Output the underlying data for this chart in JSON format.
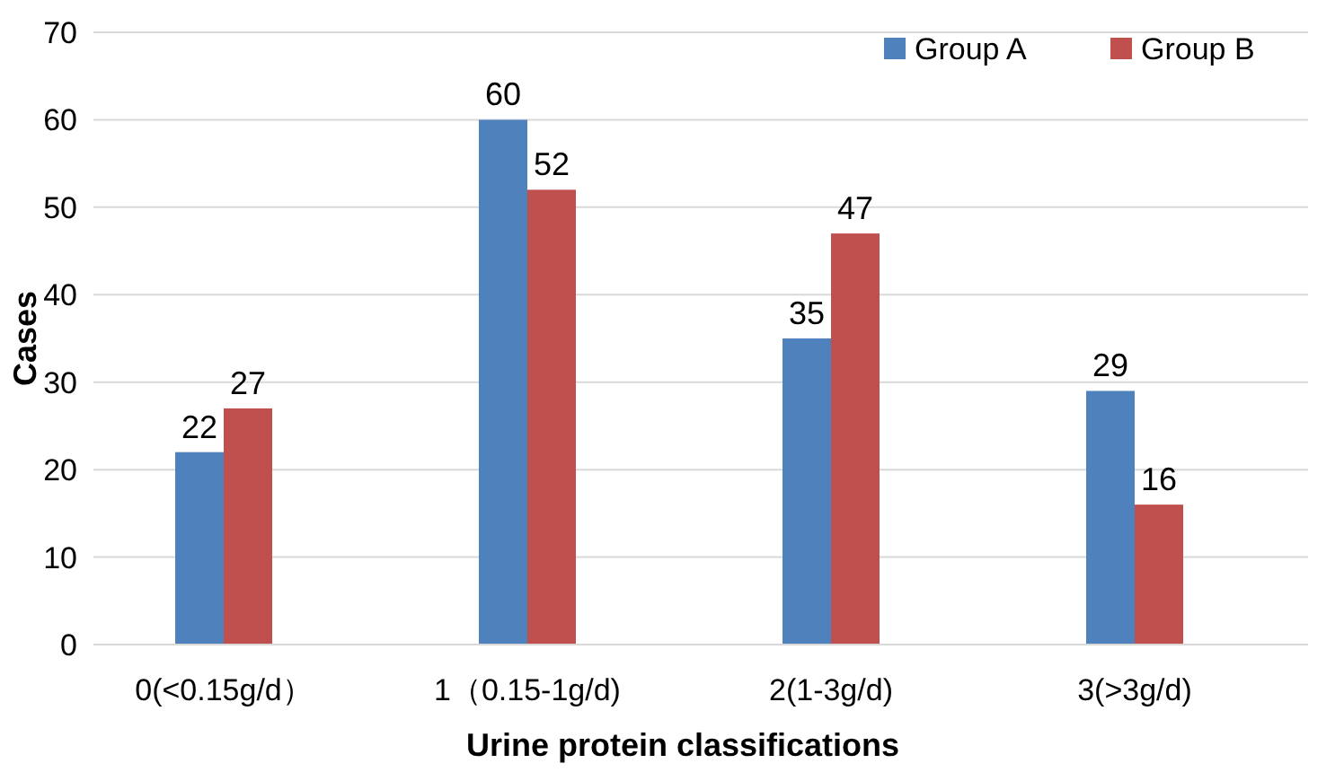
{
  "chart_data": {
    "type": "bar",
    "xlabel": "Urine protein classifications",
    "ylabel": "Cases",
    "categories": [
      "0(<0.15g/d）",
      "1（0.15-1g/d)",
      "2(1-3g/d)",
      "3(>3g/d)"
    ],
    "series": [
      {
        "name": "Group A",
        "color": "#4f81bd",
        "values": [
          22,
          60,
          35,
          29
        ]
      },
      {
        "name": "Group B",
        "color": "#c0504d",
        "values": [
          27,
          52,
          47,
          16
        ]
      }
    ],
    "ylim": [
      0,
      70
    ],
    "yticks": [
      0,
      10,
      20,
      30,
      40,
      50,
      60,
      70
    ],
    "grid": "y",
    "legend": "top right",
    "data_labels": true
  }
}
